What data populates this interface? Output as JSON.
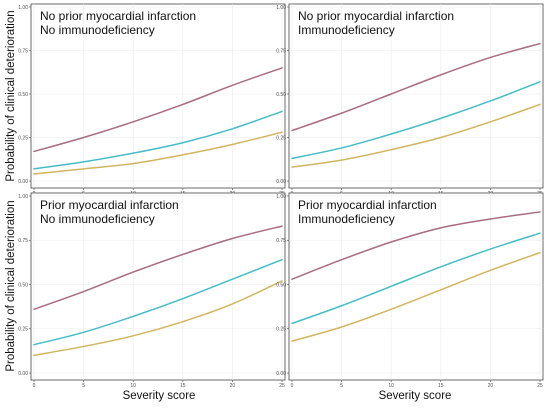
{
  "chart_data": [
    {
      "type": "line",
      "title_lines": [
        "No prior myocardial infarction",
        "No immunodeficiency"
      ],
      "x": [
        0,
        5,
        10,
        15,
        20,
        25
      ],
      "series": [
        {
          "color": "#a86b82",
          "values": [
            0.17,
            0.25,
            0.34,
            0.44,
            0.55,
            0.65
          ]
        },
        {
          "color": "#45bcc6",
          "values": [
            0.07,
            0.11,
            0.16,
            0.22,
            0.3,
            0.4
          ]
        },
        {
          "color": "#d2b560",
          "values": [
            0.04,
            0.07,
            0.1,
            0.15,
            0.21,
            0.28
          ]
        }
      ],
      "xlim": [
        0,
        25
      ],
      "ylim": [
        0,
        1
      ],
      "xticks": [
        0,
        5,
        10,
        15,
        20,
        25
      ],
      "yticks": [
        0,
        0.25,
        0.5,
        0.75,
        1
      ],
      "xtick_labels": [
        "0",
        "5",
        "10",
        "15",
        "20",
        "25"
      ],
      "ytick_labels": [
        "0.00",
        "0.25",
        "0.50",
        "0.75",
        "1.00"
      ],
      "grid": true
    },
    {
      "type": "line",
      "title_lines": [
        "No prior myocardial infarction",
        "Immunodeficiency"
      ],
      "x": [
        0,
        5,
        10,
        15,
        20,
        25
      ],
      "series": [
        {
          "color": "#a86b82",
          "values": [
            0.29,
            0.39,
            0.5,
            0.61,
            0.71,
            0.79
          ]
        },
        {
          "color": "#45bcc6",
          "values": [
            0.13,
            0.19,
            0.27,
            0.36,
            0.46,
            0.57
          ]
        },
        {
          "color": "#d2b560",
          "values": [
            0.08,
            0.12,
            0.18,
            0.25,
            0.34,
            0.44
          ]
        }
      ],
      "xlim": [
        0,
        25
      ],
      "ylim": [
        0,
        1
      ],
      "xticks": [
        0,
        5,
        10,
        15,
        20,
        25
      ],
      "yticks": [
        0,
        0.25,
        0.5,
        0.75,
        1
      ],
      "xtick_labels": [
        "0",
        "5",
        "10",
        "15",
        "20",
        "25"
      ],
      "ytick_labels": [
        "0.00",
        "0.25",
        "0.50",
        "0.75",
        "1.00"
      ],
      "grid": true
    },
    {
      "type": "line",
      "title_lines": [
        "Prior myocardial infarction",
        "No immunodeficiency"
      ],
      "x": [
        0,
        5,
        10,
        15,
        20,
        25
      ],
      "series": [
        {
          "color": "#a86b82",
          "values": [
            0.36,
            0.46,
            0.57,
            0.67,
            0.76,
            0.83
          ]
        },
        {
          "color": "#45bcc6",
          "values": [
            0.16,
            0.23,
            0.32,
            0.42,
            0.53,
            0.64
          ]
        },
        {
          "color": "#d2b560",
          "values": [
            0.1,
            0.15,
            0.21,
            0.29,
            0.39,
            0.52
          ]
        }
      ],
      "xlim": [
        0,
        25
      ],
      "ylim": [
        0,
        1
      ],
      "xticks": [
        0,
        5,
        10,
        15,
        20,
        25
      ],
      "yticks": [
        0,
        0.25,
        0.5,
        0.75,
        1
      ],
      "xtick_labels": [
        "0",
        "5",
        "10",
        "15",
        "20",
        "25"
      ],
      "ytick_labels": [
        "0.00",
        "0.25",
        "0.50",
        "0.75",
        "1.00"
      ],
      "grid": true
    },
    {
      "type": "line",
      "title_lines": [
        "Prior myocardial infarction",
        "Immunodeficiency"
      ],
      "x": [
        0,
        5,
        10,
        15,
        20,
        25
      ],
      "series": [
        {
          "color": "#a86b82",
          "values": [
            0.53,
            0.64,
            0.74,
            0.82,
            0.87,
            0.91
          ]
        },
        {
          "color": "#45bcc6",
          "values": [
            0.28,
            0.38,
            0.49,
            0.6,
            0.7,
            0.79
          ]
        },
        {
          "color": "#d2b560",
          "values": [
            0.18,
            0.26,
            0.36,
            0.47,
            0.58,
            0.68
          ]
        }
      ],
      "xlim": [
        0,
        25
      ],
      "ylim": [
        0,
        1
      ],
      "xticks": [
        0,
        5,
        10,
        15,
        20,
        25
      ],
      "yticks": [
        0,
        0.25,
        0.5,
        0.75,
        1
      ],
      "xtick_labels": [
        "0",
        "5",
        "10",
        "15",
        "20",
        "25"
      ],
      "ytick_labels": [
        "0.00",
        "0.25",
        "0.50",
        "0.75",
        "1.00"
      ],
      "grid": true
    }
  ],
  "axes": {
    "xlabel": "Severity score",
    "ylabel": "Probability of clinical deterioration"
  }
}
